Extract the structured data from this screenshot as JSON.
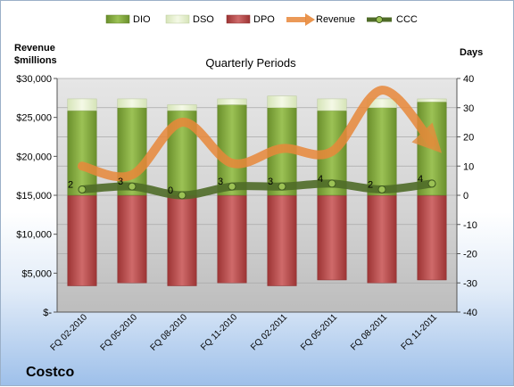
{
  "company": "Costco",
  "chart_data": {
    "type": "bar",
    "title": "Quarterly Periods",
    "left_axis": {
      "title_line1": "Revenue",
      "title_line2": "$millions",
      "range": [
        0,
        30000
      ],
      "ticks": [
        "$-",
        "$5,000",
        "$10,000",
        "$15,000",
        "$20,000",
        "$25,000",
        "$30,000"
      ]
    },
    "right_axis": {
      "title": "Days",
      "range": [
        -40,
        40
      ],
      "ticks": [
        "-40",
        "-30",
        "-20",
        "-10",
        "0",
        "10",
        "20",
        "30",
        "40"
      ]
    },
    "categories": [
      "FQ 02-2010",
      "FQ 05-2010",
      "FQ 08-2010",
      "FQ 11-2010",
      "FQ 02-2011",
      "FQ 05-2011",
      "FQ 08-2011",
      "FQ 11-2011"
    ],
    "legend": [
      "DIO",
      "DSO",
      "DPO",
      "Revenue",
      "CCC"
    ],
    "legend_position": "top",
    "series": [
      {
        "name": "DIO",
        "axis": "right",
        "values": [
          29,
          30,
          29,
          31,
          30,
          29,
          30,
          32
        ]
      },
      {
        "name": "DSO",
        "axis": "right",
        "values": [
          4,
          3,
          2,
          2,
          4,
          4,
          3,
          1
        ]
      },
      {
        "name": "DPO",
        "axis": "right",
        "values": [
          -31,
          -30,
          -31,
          -30,
          -31,
          -29,
          -30,
          -29
        ]
      },
      {
        "name": "Revenue",
        "axis": "right",
        "values": [
          10,
          7,
          25,
          11,
          16,
          15,
          36,
          18
        ]
      },
      {
        "name": "CCC",
        "axis": "right",
        "values": [
          2,
          3,
          0,
          3,
          3,
          4,
          2,
          4
        ]
      }
    ],
    "ccc_labels": [
      "2",
      "3",
      "0",
      "3",
      "3",
      "4",
      "2",
      "4"
    ],
    "colors": {
      "DIO": "#7fa43a",
      "DSO": "#e3eecb",
      "DPO": "#b64a4a",
      "Revenue": "#e8883a",
      "CCC": "#5e7f30"
    }
  }
}
